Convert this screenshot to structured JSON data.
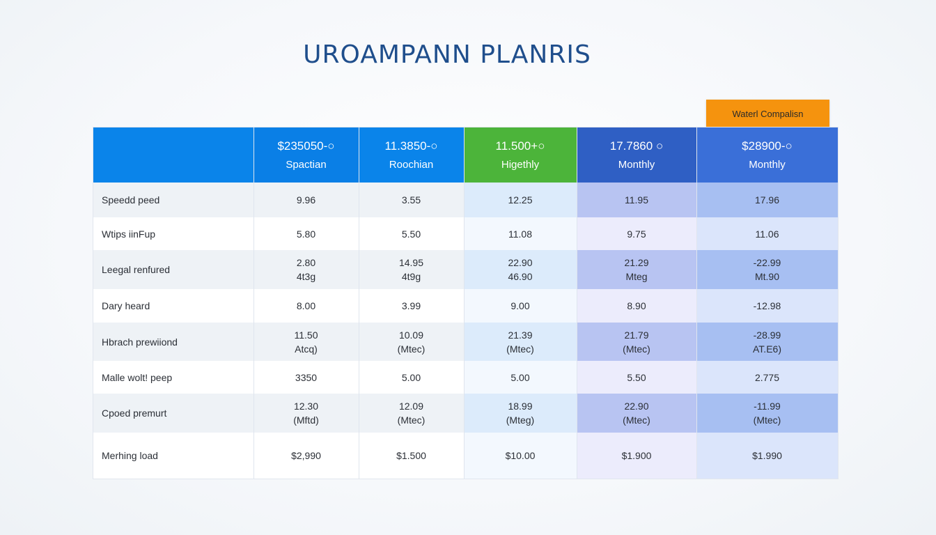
{
  "title": "UROAMPANN PLANRIS",
  "compare_tab": "Waterl Compalisn",
  "columns": [
    {
      "price": "",
      "period": ""
    },
    {
      "price": "$235050-○",
      "period": "Spactian"
    },
    {
      "price": "11.3850-○",
      "period": "Roochian"
    },
    {
      "price": "11.500+○",
      "period": "Higethly"
    },
    {
      "price": "17.7860 ○",
      "period": "Monthly"
    },
    {
      "price": "$28900-○",
      "period": "Monthly"
    }
  ],
  "colors": {
    "header": [
      "#0a84ea",
      "#0a7fe6",
      "#0a84ea",
      "#4cb43a",
      "#2f5fc4",
      "#3a6fd8"
    ],
    "row_light": [
      "#ffffff",
      "#ffffff",
      "#ffffff",
      "#f3f8fe",
      "#ececfc",
      "#dbe5fb"
    ],
    "row_dark": [
      "#eef2f6",
      "#eef2f6",
      "#eef2f6",
      "#dcebfb",
      "#b8c4f2",
      "#a7bff2"
    ],
    "title": "#1f4e8c",
    "tab": "#f5930e"
  },
  "rows": [
    {
      "label": "Speedd peed",
      "values": [
        [
          "9.96"
        ],
        [
          "3.55"
        ],
        [
          "12.25"
        ],
        [
          "11.95"
        ],
        [
          "17.96"
        ]
      ]
    },
    {
      "label": "Wtips iinFup",
      "values": [
        [
          "5.80"
        ],
        [
          "5.50"
        ],
        [
          "11.08"
        ],
        [
          "9.75"
        ],
        [
          "11.06"
        ]
      ]
    },
    {
      "label": "Leegal renfured",
      "values": [
        [
          "2.80",
          "4t3g"
        ],
        [
          "14.95",
          "4t9g"
        ],
        [
          "22.90",
          "46.90"
        ],
        [
          "21.29",
          "Mteg"
        ],
        [
          "-22.99",
          "Mt.90"
        ]
      ]
    },
    {
      "label": "Dary heard",
      "values": [
        [
          "8.00"
        ],
        [
          "3.99"
        ],
        [
          "9.00"
        ],
        [
          "8.90"
        ],
        [
          "-12.98"
        ]
      ]
    },
    {
      "label": "Hbrach prewiiond",
      "values": [
        [
          "11.50",
          "Atcq)"
        ],
        [
          "10.09",
          "(Mtec)"
        ],
        [
          "21.39",
          "(Mtec)"
        ],
        [
          "21.79",
          "(Mtec)"
        ],
        [
          "-28.99",
          "AT.E6)"
        ]
      ]
    },
    {
      "label": "Malle wolt! peep",
      "values": [
        [
          "3350"
        ],
        [
          "5.00"
        ],
        [
          "5.00"
        ],
        [
          "5.50"
        ],
        [
          "2.775"
        ]
      ]
    },
    {
      "label": "Cpoed premurt",
      "values": [
        [
          "12.30",
          "(Mftd)"
        ],
        [
          "12.09",
          "(Mtec)"
        ],
        [
          "18.99",
          "(Mteg)"
        ],
        [
          "22.90",
          "(Mtec)"
        ],
        [
          "-11.99",
          "(Mtec)"
        ]
      ]
    },
    {
      "label": "Merhing load",
      "values": [
        [
          "$2,990"
        ],
        [
          "$1.500"
        ],
        [
          "$10.00"
        ],
        [
          "$1.900"
        ],
        [
          "$1.990"
        ]
      ]
    }
  ]
}
